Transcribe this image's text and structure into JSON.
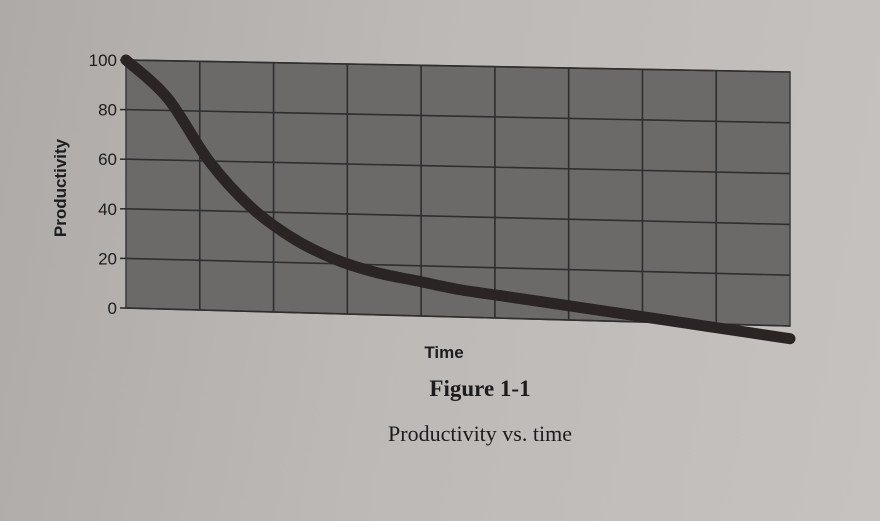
{
  "figure": {
    "number": "Figure 1-1",
    "title": "Productivity vs. time"
  },
  "chart_data": {
    "type": "line",
    "title": "",
    "xlabel": "Time",
    "ylabel": "Productivity",
    "ylim": [
      0,
      100
    ],
    "yticks": [
      0,
      20,
      40,
      60,
      80,
      100
    ],
    "xticks_count": 9,
    "grid": true,
    "legend": "none",
    "plot_background": "#6c6a69",
    "line_color": "#2a2524",
    "grid_color": "#2e2e2e",
    "series": [
      {
        "x": [
          0,
          0.5,
          1,
          1.5,
          2,
          2.5,
          3,
          3.5,
          4,
          4.5,
          5,
          5.5,
          6,
          6.5,
          7,
          7.5,
          8
        ],
        "values": [
          100,
          85,
          60,
          42,
          30,
          22,
          17,
          14,
          11,
          9,
          7,
          5,
          3,
          1,
          -1,
          -3,
          -5
        ]
      }
    ]
  }
}
